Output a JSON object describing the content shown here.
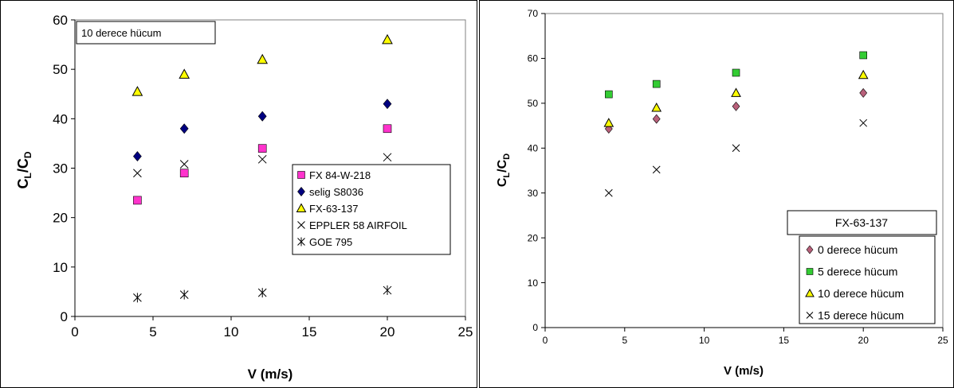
{
  "chart_data": [
    {
      "type": "scatter",
      "annotation": "10 derece hücum",
      "xlabel": "V (m/s)",
      "ylabel": {
        "main": "C",
        "sub1": "L",
        "mid": "/C",
        "sub2": "D"
      },
      "xlim": [
        0,
        25
      ],
      "ylim": [
        0,
        60
      ],
      "xticks": [
        "0",
        "5",
        "10",
        "15",
        "20",
        "25"
      ],
      "yticks": [
        "0",
        "10",
        "20",
        "30",
        "40",
        "50",
        "60"
      ],
      "grid": false,
      "legend_position": "right",
      "x": [
        4,
        7,
        12,
        20
      ],
      "series": [
        {
          "name": "FX 84-W-218",
          "marker": "square",
          "color": "#ff33cc",
          "values": [
            23.5,
            29,
            34,
            38
          ]
        },
        {
          "name": "selig S8036",
          "marker": "diamond",
          "color": "#000080",
          "values": [
            32.4,
            38,
            40.5,
            43
          ]
        },
        {
          "name": "FX-63-137",
          "marker": "triangle",
          "color": "#ffff00",
          "values": [
            45.5,
            49,
            52,
            56
          ]
        },
        {
          "name": "EPPLER 58 AIRFOIL",
          "marker": "x",
          "color": "#000000",
          "values": [
            29,
            30.8,
            31.8,
            32.2
          ]
        },
        {
          "name": "GOE 795",
          "marker": "star",
          "color": "#000000",
          "values": [
            3.8,
            4.4,
            4.8,
            5.3
          ]
        }
      ]
    },
    {
      "type": "scatter",
      "legend_title": "FX-63-137",
      "xlabel": "V (m/s)",
      "ylabel": {
        "main": "C",
        "sub1": "L",
        "mid": "/C",
        "sub2": "D"
      },
      "xlim": [
        0,
        25
      ],
      "ylim": [
        0,
        70
      ],
      "xticks": [
        "0",
        "5",
        "10",
        "15",
        "20",
        "25"
      ],
      "yticks": [
        "0",
        "10",
        "20",
        "30",
        "40",
        "50",
        "60",
        "70"
      ],
      "grid": false,
      "legend_position": "bottom-right",
      "x": [
        4,
        7,
        12,
        20
      ],
      "series": [
        {
          "name": "0 derece hücum",
          "marker": "diamond",
          "color": "#b8607a",
          "values": [
            44.3,
            46.5,
            49.3,
            52.3
          ]
        },
        {
          "name": "5 derece hücum",
          "marker": "square",
          "color": "#33cc33",
          "values": [
            52,
            54.3,
            56.8,
            60.7
          ]
        },
        {
          "name": "10 derece hücum",
          "marker": "triangle",
          "color": "#ffff00",
          "values": [
            45.6,
            49,
            52.3,
            56.3
          ]
        },
        {
          "name": "15 derece hücum",
          "marker": "x",
          "color": "#000000",
          "values": [
            30,
            35.2,
            40,
            45.6
          ]
        }
      ]
    }
  ]
}
